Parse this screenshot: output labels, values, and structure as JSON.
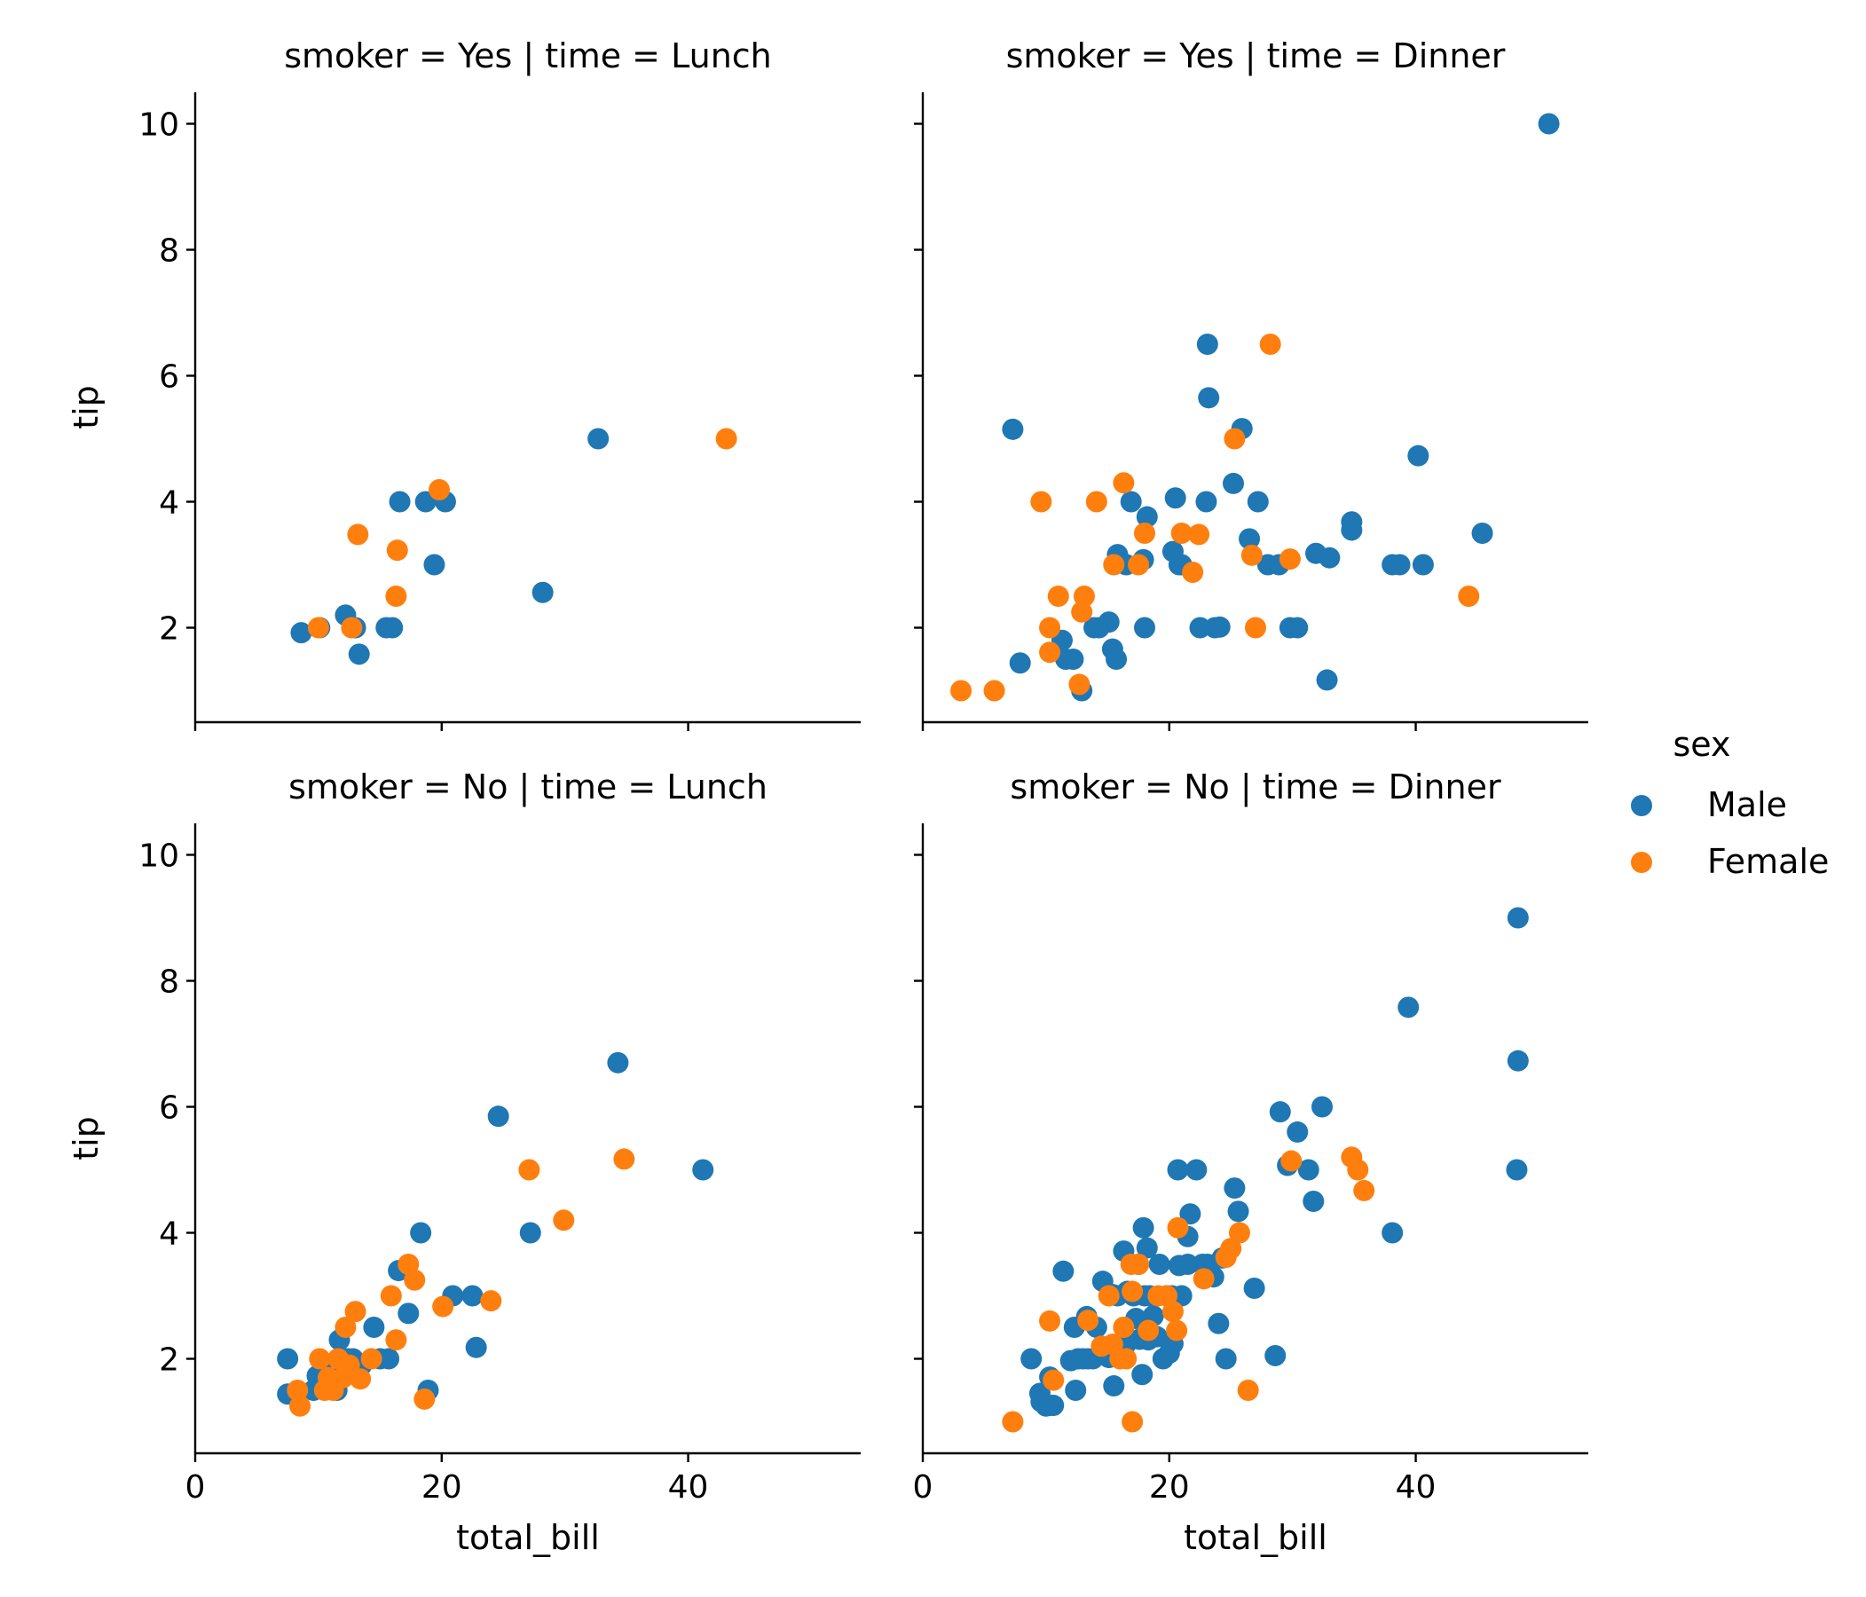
{
  "chart_data": {
    "type": "scatter",
    "facet_layout": {
      "rows": "smoker",
      "cols": "time"
    },
    "xlabel": "total_bill",
    "ylabel": "tip",
    "xlim": [
      0,
      54
    ],
    "ylim": [
      0.5,
      10.5
    ],
    "xticks": [
      0,
      20,
      40
    ],
    "yticks": [
      2,
      4,
      6,
      8,
      10
    ],
    "legend": {
      "title": "sex",
      "placement": "right",
      "entries": [
        {
          "name": "Male",
          "color": "#1f77b4"
        },
        {
          "name": "Female",
          "color": "#ff7f0e"
        }
      ]
    },
    "panels": [
      {
        "title": "smoker = Yes | time = Lunch",
        "row": 0,
        "col": 0,
        "series": [
          {
            "name": "Male",
            "points": [
              [
                8.6,
                1.92
              ],
              [
                10.1,
                2.0
              ],
              [
                12.2,
                2.2
              ],
              [
                13.0,
                2.0
              ],
              [
                13.3,
                1.58
              ],
              [
                15.5,
                2.0
              ],
              [
                16.0,
                2.0
              ],
              [
                16.6,
                4.0
              ],
              [
                18.7,
                4.0
              ],
              [
                19.4,
                3.0
              ],
              [
                20.3,
                4.0
              ],
              [
                28.2,
                2.56
              ],
              [
                32.7,
                5.0
              ]
            ]
          },
          {
            "name": "Female",
            "points": [
              [
                10.0,
                2.0
              ],
              [
                12.7,
                2.0
              ],
              [
                13.2,
                3.48
              ],
              [
                16.3,
                2.5
              ],
              [
                16.4,
                3.23
              ],
              [
                19.8,
                4.19
              ],
              [
                43.1,
                5.0
              ]
            ]
          }
        ]
      },
      {
        "title": "smoker = Yes | time = Dinner",
        "row": 0,
        "col": 1,
        "series": [
          {
            "name": "Male",
            "points": [
              [
                7.3,
                5.15
              ],
              [
                7.9,
                1.44
              ],
              [
                11.3,
                1.8
              ],
              [
                11.6,
                1.5
              ],
              [
                12.2,
                1.5
              ],
              [
                12.9,
                1.0
              ],
              [
                13.9,
                2.0
              ],
              [
                14.3,
                2.0
              ],
              [
                15.1,
                2.09
              ],
              [
                15.4,
                1.66
              ],
              [
                15.7,
                1.5
              ],
              [
                15.8,
                3.16
              ],
              [
                16.5,
                3.0
              ],
              [
                16.9,
                4.0
              ],
              [
                17.9,
                3.08
              ],
              [
                18.0,
                2.0
              ],
              [
                18.2,
                3.76
              ],
              [
                20.3,
                3.21
              ],
              [
                20.5,
                4.06
              ],
              [
                20.8,
                3.0
              ],
              [
                21.0,
                3.0
              ],
              [
                22.5,
                2.0
              ],
              [
                23.0,
                4.0
              ],
              [
                23.1,
                6.5
              ],
              [
                23.2,
                5.65
              ],
              [
                23.7,
                2.0
              ],
              [
                24.1,
                2.01
              ],
              [
                25.2,
                4.29
              ],
              [
                25.9,
                5.16
              ],
              [
                26.5,
                3.41
              ],
              [
                27.2,
                4.0
              ],
              [
                28.0,
                3.0
              ],
              [
                28.9,
                3.0
              ],
              [
                29.8,
                2.0
              ],
              [
                30.4,
                2.0
              ],
              [
                31.9,
                3.18
              ],
              [
                32.8,
                1.17
              ],
              [
                33.0,
                3.11
              ],
              [
                34.8,
                3.55
              ],
              [
                34.8,
                3.68
              ],
              [
                38.1,
                3.0
              ],
              [
                38.7,
                3.0
              ],
              [
                40.2,
                4.73
              ],
              [
                40.6,
                3.0
              ],
              [
                45.4,
                3.5
              ],
              [
                50.8,
                10.0
              ]
            ]
          },
          {
            "name": "Female",
            "points": [
              [
                3.1,
                1.0
              ],
              [
                5.8,
                1.0
              ],
              [
                9.6,
                4.0
              ],
              [
                10.3,
                2.0
              ],
              [
                10.3,
                1.61
              ],
              [
                11.0,
                2.5
              ],
              [
                12.7,
                1.1
              ],
              [
                12.9,
                2.25
              ],
              [
                13.1,
                2.5
              ],
              [
                14.1,
                4.0
              ],
              [
                15.5,
                3.0
              ],
              [
                16.3,
                4.3
              ],
              [
                17.5,
                3.0
              ],
              [
                18.0,
                3.5
              ],
              [
                21.0,
                3.5
              ],
              [
                21.9,
                2.88
              ],
              [
                22.4,
                3.48
              ],
              [
                25.3,
                5.0
              ],
              [
                26.7,
                3.15
              ],
              [
                27.0,
                2.0
              ],
              [
                28.2,
                6.5
              ],
              [
                29.8,
                3.09
              ],
              [
                44.3,
                2.5
              ]
            ]
          }
        ]
      },
      {
        "title": "smoker = No | time = Lunch",
        "row": 1,
        "col": 0,
        "series": [
          {
            "name": "Male",
            "points": [
              [
                7.5,
                2.0
              ],
              [
                7.5,
                1.44
              ],
              [
                9.6,
                1.5
              ],
              [
                9.9,
                1.73
              ],
              [
                10.3,
                1.8
              ],
              [
                11.5,
                1.5
              ],
              [
                11.7,
                2.3
              ],
              [
                12.0,
                1.8
              ],
              [
                12.4,
                2.0
              ],
              [
                12.8,
                2.0
              ],
              [
                13.5,
                1.9
              ],
              [
                14.5,
                2.5
              ],
              [
                15.0,
                2.0
              ],
              [
                15.7,
                2.0
              ],
              [
                16.5,
                3.4
              ],
              [
                17.3,
                2.72
              ],
              [
                18.3,
                4.0
              ],
              [
                18.9,
                1.5
              ],
              [
                20.9,
                3.0
              ],
              [
                22.5,
                3.0
              ],
              [
                22.8,
                2.18
              ],
              [
                24.6,
                5.85
              ],
              [
                27.2,
                4.0
              ],
              [
                34.3,
                6.7
              ],
              [
                41.2,
                5.0
              ]
            ]
          },
          {
            "name": "Female",
            "points": [
              [
                8.3,
                1.5
              ],
              [
                8.5,
                1.25
              ],
              [
                10.1,
                2.0
              ],
              [
                10.5,
                1.5
              ],
              [
                10.8,
                1.7
              ],
              [
                11.2,
                1.5
              ],
              [
                11.6,
                2.0
              ],
              [
                12.0,
                1.7
              ],
              [
                12.2,
                2.5
              ],
              [
                12.5,
                1.9
              ],
              [
                13.0,
                2.75
              ],
              [
                13.4,
                1.68
              ],
              [
                14.3,
                2.0
              ],
              [
                15.9,
                3.0
              ],
              [
                16.3,
                2.3
              ],
              [
                17.3,
                3.5
              ],
              [
                17.8,
                3.25
              ],
              [
                18.6,
                1.36
              ],
              [
                20.1,
                2.83
              ],
              [
                24.0,
                2.92
              ],
              [
                27.1,
                5.0
              ],
              [
                29.9,
                4.2
              ],
              [
                34.8,
                5.17
              ]
            ]
          }
        ]
      },
      {
        "title": "smoker = No | time = Dinner",
        "row": 1,
        "col": 1,
        "series": [
          {
            "name": "Male",
            "points": [
              [
                8.8,
                2.0
              ],
              [
                9.5,
                1.45
              ],
              [
                9.6,
                1.32
              ],
              [
                10.0,
                1.25
              ],
              [
                10.3,
                1.26
              ],
              [
                10.3,
                1.71
              ],
              [
                10.6,
                1.26
              ],
              [
                11.4,
                3.39
              ],
              [
                12.0,
                1.97
              ],
              [
                12.3,
                2.5
              ],
              [
                12.4,
                1.5
              ],
              [
                12.6,
                2.0
              ],
              [
                13.0,
                2.0
              ],
              [
                13.3,
                2.67
              ],
              [
                13.4,
                2.0
              ],
              [
                13.8,
                2.0
              ],
              [
                14.1,
                2.5
              ],
              [
                14.6,
                3.23
              ],
              [
                15.1,
                2.02
              ],
              [
                15.4,
                3.02
              ],
              [
                15.5,
                1.57
              ],
              [
                15.8,
                3.0
              ],
              [
                16.3,
                3.71
              ],
              [
                16.5,
                2.24
              ],
              [
                16.6,
                3.07
              ],
              [
                17.1,
                3.0
              ],
              [
                17.3,
                2.64
              ],
              [
                17.5,
                3.5
              ],
              [
                17.6,
                2.31
              ],
              [
                17.8,
                1.75
              ],
              [
                17.9,
                4.08
              ],
              [
                18.0,
                3.0
              ],
              [
                18.2,
                3.76
              ],
              [
                18.3,
                2.3
              ],
              [
                18.4,
                3.0
              ],
              [
                18.7,
                2.68
              ],
              [
                19.0,
                2.35
              ],
              [
                19.2,
                3.5
              ],
              [
                19.5,
                2.0
              ],
              [
                19.8,
                3.0
              ],
              [
                20.0,
                2.09
              ],
              [
                20.2,
                3.0
              ],
              [
                20.3,
                2.24
              ],
              [
                20.7,
                5.0
              ],
              [
                20.8,
                3.48
              ],
              [
                21.0,
                3.0
              ],
              [
                21.5,
                3.5
              ],
              [
                21.5,
                3.94
              ],
              [
                21.7,
                4.3
              ],
              [
                22.2,
                5.0
              ],
              [
                22.7,
                3.5
              ],
              [
                23.1,
                3.5
              ],
              [
                23.6,
                3.3
              ],
              [
                24.0,
                2.56
              ],
              [
                24.3,
                3.6
              ],
              [
                24.6,
                2.0
              ],
              [
                25.3,
                4.71
              ],
              [
                25.6,
                4.34
              ],
              [
                26.9,
                3.12
              ],
              [
                28.6,
                2.05
              ],
              [
                29.0,
                5.92
              ],
              [
                29.6,
                5.07
              ],
              [
                30.4,
                5.6
              ],
              [
                31.3,
                5.0
              ],
              [
                31.7,
                4.5
              ],
              [
                32.4,
                6.0
              ],
              [
                38.1,
                4.0
              ],
              [
                39.4,
                7.58
              ],
              [
                48.3,
                9.0
              ],
              [
                48.3,
                6.73
              ],
              [
                48.2,
                5.0
              ]
            ]
          },
          {
            "name": "Female",
            "points": [
              [
                7.3,
                1.0
              ],
              [
                10.3,
                2.6
              ],
              [
                10.6,
                1.66
              ],
              [
                13.4,
                2.61
              ],
              [
                14.5,
                2.2
              ],
              [
                15.1,
                3.0
              ],
              [
                15.4,
                2.23
              ],
              [
                16.0,
                2.0
              ],
              [
                16.3,
                2.5
              ],
              [
                16.5,
                2.0
              ],
              [
                16.9,
                3.5
              ],
              [
                17.0,
                1.0
              ],
              [
                17.0,
                3.07
              ],
              [
                17.5,
                3.5
              ],
              [
                18.3,
                2.45
              ],
              [
                19.1,
                3.0
              ],
              [
                19.8,
                3.0
              ],
              [
                20.3,
                2.75
              ],
              [
                20.6,
                2.45
              ],
              [
                20.7,
                4.08
              ],
              [
                22.8,
                3.27
              ],
              [
                24.6,
                3.61
              ],
              [
                25.0,
                3.75
              ],
              [
                25.7,
                4.0
              ],
              [
                26.4,
                1.5
              ],
              [
                29.9,
                5.14
              ],
              [
                34.8,
                5.2
              ],
              [
                35.3,
                5.0
              ],
              [
                35.8,
                4.67
              ]
            ]
          }
        ]
      }
    ]
  }
}
